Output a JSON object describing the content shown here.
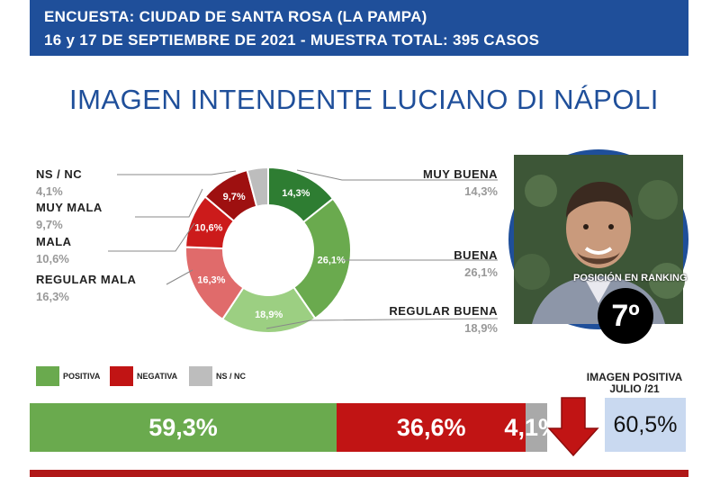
{
  "header": {
    "line1": "ENCUESTA: CIUDAD DE SANTA ROSA (LA PAMPA)",
    "line2": "16 y 17 DE SEPTIEMBRE DE 2021  - MUESTRA TOTAL: 395 CASOS"
  },
  "chart_data": [
    {
      "type": "pie",
      "title": "IMAGEN INTENDENTE  LUCIANO DI NÁPOLI",
      "categories": [
        "MUY BUENA",
        "BUENA",
        "REGULAR BUENA",
        "REGULAR MALA",
        "MALA",
        "MUY MALA",
        "NS / NC"
      ],
      "values": [
        14.3,
        26.1,
        18.9,
        16.3,
        10.6,
        9.7,
        4.1
      ],
      "value_labels": [
        "14,3%",
        "26,1%",
        "18,9%",
        "16,3%",
        "10,6%",
        "9,7%",
        "4,1%"
      ],
      "colors": [
        "#2e7d32",
        "#6aaa4e",
        "#9ccf82",
        "#e06b6b",
        "#cc1b1b",
        "#9e1010",
        "#bdbdbd"
      ],
      "donut": true
    },
    {
      "type": "bar",
      "orientation": "horizontal-stacked",
      "categories": [
        "POSITIVA",
        "NEGATIVA",
        "NS / NC"
      ],
      "values": [
        59.3,
        36.6,
        4.1
      ],
      "value_labels": [
        "59,3%",
        "36,6%",
        "4,1%"
      ],
      "colors": [
        "#6aaa4e",
        "#c11414",
        "#a9a9a9"
      ]
    }
  ],
  "labels": {
    "ns": {
      "name": "NS / NC",
      "value": "4,1%"
    },
    "muy_mala": {
      "name": "MUY MALA",
      "value": "9,7%"
    },
    "mala": {
      "name": "MALA",
      "value": "10,6%"
    },
    "regular_mala": {
      "name": "REGULAR MALA",
      "value": "16,3%"
    },
    "muy_buena": {
      "name": "MUY BUENA",
      "value": "14,3%"
    },
    "buena": {
      "name": "BUENA",
      "value": "26,1%"
    },
    "regular_buena": {
      "name": "REGULAR BUENA",
      "value": "18,9%"
    }
  },
  "legend": {
    "positiva": "POSITIVA",
    "negativa": "NEGATIVA",
    "nsnc": "NS / NC"
  },
  "ranking": {
    "label": "POSICIÓN EN RANKING",
    "value": "7º"
  },
  "previous": {
    "title_line1": "IMAGEN POSITIVA",
    "title_line2": "JULIO /21",
    "value": "60,5%",
    "trend_icon": "down-arrow-icon",
    "trend_color": "#c11414"
  }
}
